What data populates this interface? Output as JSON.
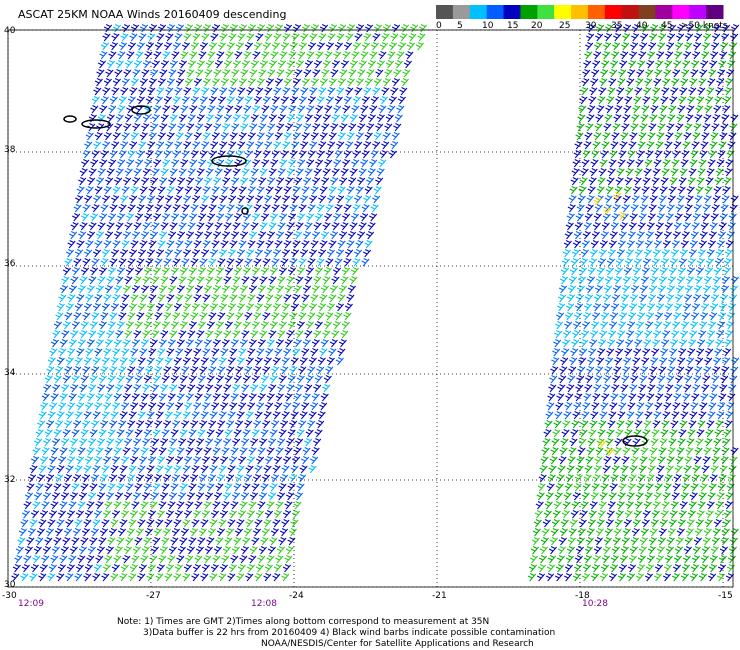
{
  "title": "ASCAT 25KM NOAA Winds 20160409 descending",
  "scale": {
    "labels": [
      "0",
      "5",
      "10",
      "15",
      "20",
      "25",
      "30",
      "35",
      "40",
      "45",
      ">50 knots"
    ],
    "colors": [
      "#555555",
      "#9a9a9a",
      "#00c0ff",
      "#0060ff",
      "#0000c0",
      "#00a000",
      "#40e040",
      "#ffff00",
      "#ffc000",
      "#ff6000",
      "#ff0000",
      "#c01010",
      "#804020",
      "#a000a0",
      "#ff00ff",
      "#c000ff",
      "#600080"
    ]
  },
  "lat_labels": [
    "40",
    "38",
    "36",
    "34",
    "32",
    "30"
  ],
  "lon_labels": [
    "-30",
    "-27",
    "-24",
    "-21",
    "-18",
    "-15"
  ],
  "times": [
    "12:09",
    "12:08",
    "10:28"
  ],
  "notes": {
    "line1": "Note: 1) Times are GMT 2)Times along bottom correspond to measurement at 35N",
    "line2": "3)Data buffer is 22 hrs from 20160409 4) Black wind barbs indicate possible contamination",
    "line3": "NOAA/NESDIS/Center for Satellite Applications and Research"
  }
}
